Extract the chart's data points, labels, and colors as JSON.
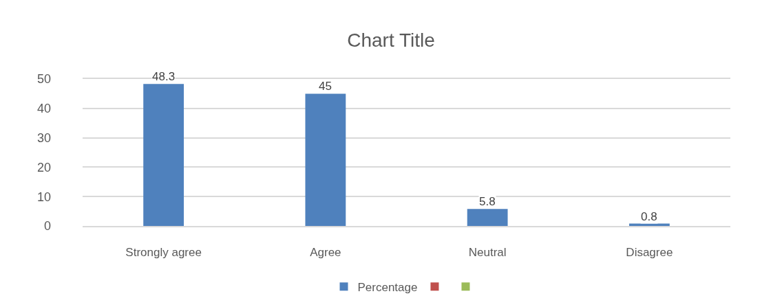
{
  "chart_data": {
    "type": "bar",
    "title": "Chart Title",
    "categories": [
      "Strongly agree",
      "Agree",
      "Neutral",
      "Disagree"
    ],
    "series": [
      {
        "name": "Percentage",
        "color": "#4f81bd",
        "values": [
          48.3,
          45,
          5.8,
          0.8
        ]
      },
      {
        "color": "#c0504d",
        "values": [
          null,
          null,
          null,
          null
        ]
      },
      {
        "color": "#9bbb59",
        "values": [
          null,
          null,
          null,
          null
        ]
      }
    ],
    "ylim": [
      0,
      50
    ],
    "yticks": [
      0,
      10,
      20,
      30,
      40,
      50
    ],
    "grid": "y",
    "legend": "bottom",
    "data_labels": true
  }
}
